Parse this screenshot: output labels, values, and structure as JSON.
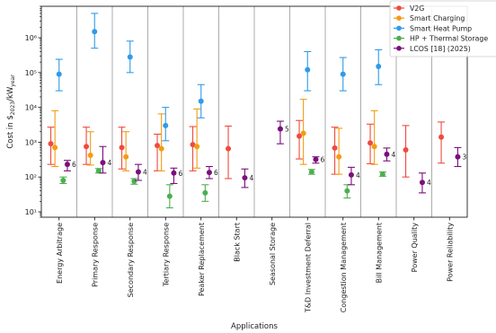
{
  "chart_data": {
    "type": "scatter",
    "xlabel": "Applications",
    "ylabel_prefix": "Cost in $",
    "ylabel_sub": "2023",
    "ylabel_mid": "/kW",
    "ylabel_sub2": "year",
    "yscale": "log",
    "ylim": [
      7,
      8000000
    ],
    "yticks": [
      {
        "value": 10,
        "label": "10¹"
      },
      {
        "value": 100,
        "label": "10²"
      },
      {
        "value": 1000,
        "label": "10³"
      },
      {
        "value": 10000,
        "label": "10⁴"
      },
      {
        "value": 100000,
        "label": "10⁵"
      },
      {
        "value": 1000000,
        "label": "10⁶"
      }
    ],
    "categories": [
      "Energy Arbitrage",
      "Primary Response",
      "Secondary Response",
      "Tertiary Response",
      "Peaker Replacement",
      "Black Start",
      "Seasonal Storage",
      "T&D Investment Deferral",
      "Congestion Management",
      "Bill Management",
      "Power Quality",
      "Power Reliability"
    ],
    "legend_position": "top-right",
    "series": [
      {
        "name": "V2G",
        "color": "#ee4b3e",
        "points": [
          {
            "cat": 0,
            "y": 900,
            "low": 230,
            "high": 2700
          },
          {
            "cat": 1,
            "y": 750,
            "low": 230,
            "high": 2700
          },
          {
            "cat": 2,
            "y": 700,
            "low": 170,
            "high": 2700
          },
          {
            "cat": 3,
            "y": 800,
            "low": 150,
            "high": 1700
          },
          {
            "cat": 4,
            "y": 850,
            "low": 150,
            "high": 2800
          },
          {
            "cat": 5,
            "y": 650,
            "low": 90,
            "high": 2900
          },
          {
            "cat": 7,
            "y": 1500,
            "low": 330,
            "high": 4200
          },
          {
            "cat": 8,
            "y": 680,
            "low": 120,
            "high": 2700
          },
          {
            "cat": 9,
            "y": 950,
            "low": 240,
            "high": 3300
          },
          {
            "cat": 10,
            "y": 600,
            "low": 100,
            "high": 3000
          },
          {
            "cat": 11,
            "y": 1400,
            "low": 250,
            "high": 3800
          }
        ]
      },
      {
        "name": "Smart Charging",
        "color": "#f39c12",
        "points": [
          {
            "cat": 0,
            "y": 700,
            "low": 200,
            "high": 8000
          },
          {
            "cat": 1,
            "y": 420,
            "low": 220,
            "high": 2000
          },
          {
            "cat": 2,
            "y": 380,
            "low": 150,
            "high": 2000
          },
          {
            "cat": 3,
            "y": 650,
            "low": 150,
            "high": 6500
          },
          {
            "cat": 4,
            "y": 750,
            "low": 180,
            "high": 9000
          },
          {
            "cat": 7,
            "y": 1800,
            "low": 230,
            "high": 17000
          },
          {
            "cat": 8,
            "y": 380,
            "low": 120,
            "high": 2500
          },
          {
            "cat": 9,
            "y": 750,
            "low": 230,
            "high": 8000
          }
        ]
      },
      {
        "name": "Smart Heat Pump",
        "color": "#2f9be8",
        "points": [
          {
            "cat": 0,
            "y": 90000,
            "low": 30000,
            "high": 240000
          },
          {
            "cat": 1,
            "y": 1500000,
            "low": 500000,
            "high": 5000000
          },
          {
            "cat": 2,
            "y": 280000,
            "low": 100000,
            "high": 800000
          },
          {
            "cat": 3,
            "y": 3000,
            "low": 1100,
            "high": 10000
          },
          {
            "cat": 4,
            "y": 15000,
            "low": 5000,
            "high": 45000
          },
          {
            "cat": 7,
            "y": 120000,
            "low": 30000,
            "high": 400000
          },
          {
            "cat": 8,
            "y": 90000,
            "low": 30000,
            "high": 270000
          },
          {
            "cat": 9,
            "y": 150000,
            "low": 45000,
            "high": 450000
          }
        ]
      },
      {
        "name": "HP + Thermal Storage",
        "color": "#4caf50",
        "points": [
          {
            "cat": 0,
            "y": 80,
            "low": 65,
            "high": 100
          },
          {
            "cat": 1,
            "y": 150,
            "low": 130,
            "high": 175
          },
          {
            "cat": 2,
            "y": 75,
            "low": 62,
            "high": 90
          },
          {
            "cat": 3,
            "y": 28,
            "low": 13,
            "high": 60
          },
          {
            "cat": 4,
            "y": 35,
            "low": 20,
            "high": 60
          },
          {
            "cat": 7,
            "y": 140,
            "low": 120,
            "high": 165
          },
          {
            "cat": 8,
            "y": 40,
            "low": 25,
            "high": 60
          },
          {
            "cat": 9,
            "y": 120,
            "low": 105,
            "high": 140
          }
        ]
      },
      {
        "name": "LCOS [18] (2025)",
        "color": "#7b0f7b",
        "points": [
          {
            "cat": 0,
            "y": 230,
            "low": 150,
            "high": 300,
            "label": "6"
          },
          {
            "cat": 1,
            "y": 260,
            "low": 130,
            "high": 750,
            "label": "4"
          },
          {
            "cat": 2,
            "y": 140,
            "low": 80,
            "high": 230,
            "label": "4"
          },
          {
            "cat": 3,
            "y": 130,
            "low": 65,
            "high": 180,
            "label": "6"
          },
          {
            "cat": 4,
            "y": 135,
            "low": 90,
            "high": 200,
            "label": "6"
          },
          {
            "cat": 5,
            "y": 95,
            "low": 50,
            "high": 170,
            "label": "4"
          },
          {
            "cat": 6,
            "y": 2400,
            "low": 900,
            "high": 4000,
            "label": "5"
          },
          {
            "cat": 7,
            "y": 320,
            "low": 250,
            "high": 380,
            "label": "6"
          },
          {
            "cat": 8,
            "y": 115,
            "low": 60,
            "high": 190,
            "label": "4"
          },
          {
            "cat": 9,
            "y": 450,
            "low": 290,
            "high": 680,
            "label": "4"
          },
          {
            "cat": 10,
            "y": 70,
            "low": 35,
            "high": 130,
            "label": "4"
          },
          {
            "cat": 11,
            "y": 380,
            "low": 200,
            "high": 700,
            "label": "3"
          }
        ]
      }
    ]
  }
}
